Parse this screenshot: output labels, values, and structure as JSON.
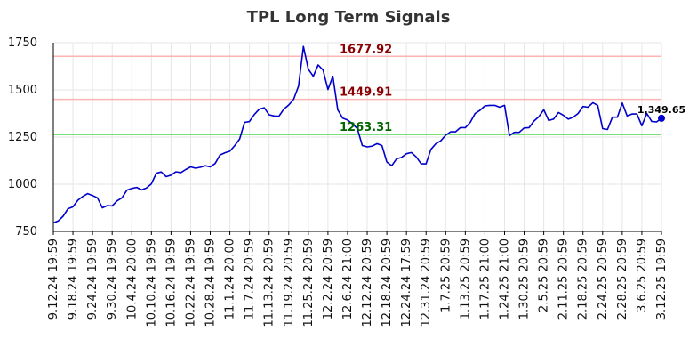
{
  "chart_data": {
    "type": "line",
    "title": "TPL Long Term Signals",
    "xlabel": "",
    "ylabel": "",
    "ylim": [
      750,
      1750
    ],
    "yticks": [
      750,
      1000,
      1250,
      1500,
      1750
    ],
    "ytick_labels": [
      "750",
      "1000",
      "1250",
      "1500",
      "1750"
    ],
    "xtick_labels": [
      "9.12.24 19:59",
      "9.18.24 19:59",
      "9.24.24 19:59",
      "9.30.24 19:59",
      "10.4.24 20:00",
      "10.10.24 19:59",
      "10.16.24 19:59",
      "10.22.24 19:59",
      "10.28.24 19:59",
      "11.1.24 20:00",
      "11.7.24 20:59",
      "11.13.24 20:59",
      "11.19.24 20:59",
      "11.25.24 20:59",
      "12.2.24 20:59",
      "12.6.24 21:00",
      "12.12.24 20:59",
      "12.18.24 20:59",
      "12.24.24 17:59",
      "12.31.24 20:59",
      "1.7.25 20:59",
      "1.13.25 20:59",
      "1.17.25 21:00",
      "1.24.25 21:00",
      "1.30.25 20:59",
      "2.5.25 20:59",
      "2.11.25 20:59",
      "2.18.25 20:59",
      "2.24.25 20:59",
      "2.28.25 20:59",
      "3.6.25 20:59",
      "3.12.25 19:59"
    ],
    "grid": true,
    "series": [
      {
        "color": "#0000cc",
        "values": [
          795,
          805,
          830,
          870,
          880,
          915,
          935,
          950,
          940,
          928,
          875,
          887,
          885,
          912,
          928,
          968,
          978,
          983,
          970,
          980,
          1002,
          1058,
          1065,
          1040,
          1048,
          1066,
          1062,
          1078,
          1092,
          1085,
          1090,
          1098,
          1092,
          1110,
          1155,
          1167,
          1175,
          1205,
          1240,
          1328,
          1332,
          1370,
          1398,
          1405,
          1368,
          1362,
          1360,
          1398,
          1420,
          1450,
          1520,
          1730,
          1610,
          1572,
          1632,
          1605,
          1502,
          1572,
          1395,
          1350,
          1340,
          1320,
          1295,
          1205,
          1198,
          1202,
          1215,
          1205,
          1118,
          1098,
          1135,
          1142,
          1162,
          1168,
          1145,
          1108,
          1108,
          1185,
          1215,
          1230,
          1260,
          1278,
          1278,
          1300,
          1300,
          1328,
          1375,
          1392,
          1415,
          1418,
          1418,
          1408,
          1418,
          1258,
          1275,
          1275,
          1298,
          1300,
          1335,
          1358,
          1395,
          1338,
          1345,
          1380,
          1365,
          1345,
          1355,
          1375,
          1412,
          1408,
          1432,
          1418,
          1295,
          1290,
          1355,
          1355,
          1430,
          1362,
          1372,
          1372,
          1310,
          1375,
          1333,
          1330,
          1349.65
        ]
      }
    ],
    "levels": [
      {
        "value": 1677.92,
        "label": "1677.92",
        "line_color": "#ffb3b3",
        "text_color": "#8b0000"
      },
      {
        "value": 1449.91,
        "label": "1449.91",
        "line_color": "#ffb3b3",
        "text_color": "#8b0000"
      },
      {
        "value": 1263.31,
        "label": "1263.31",
        "line_color": "#66dd66",
        "text_color": "#006400"
      }
    ],
    "last_value_label": "1,349.65"
  }
}
